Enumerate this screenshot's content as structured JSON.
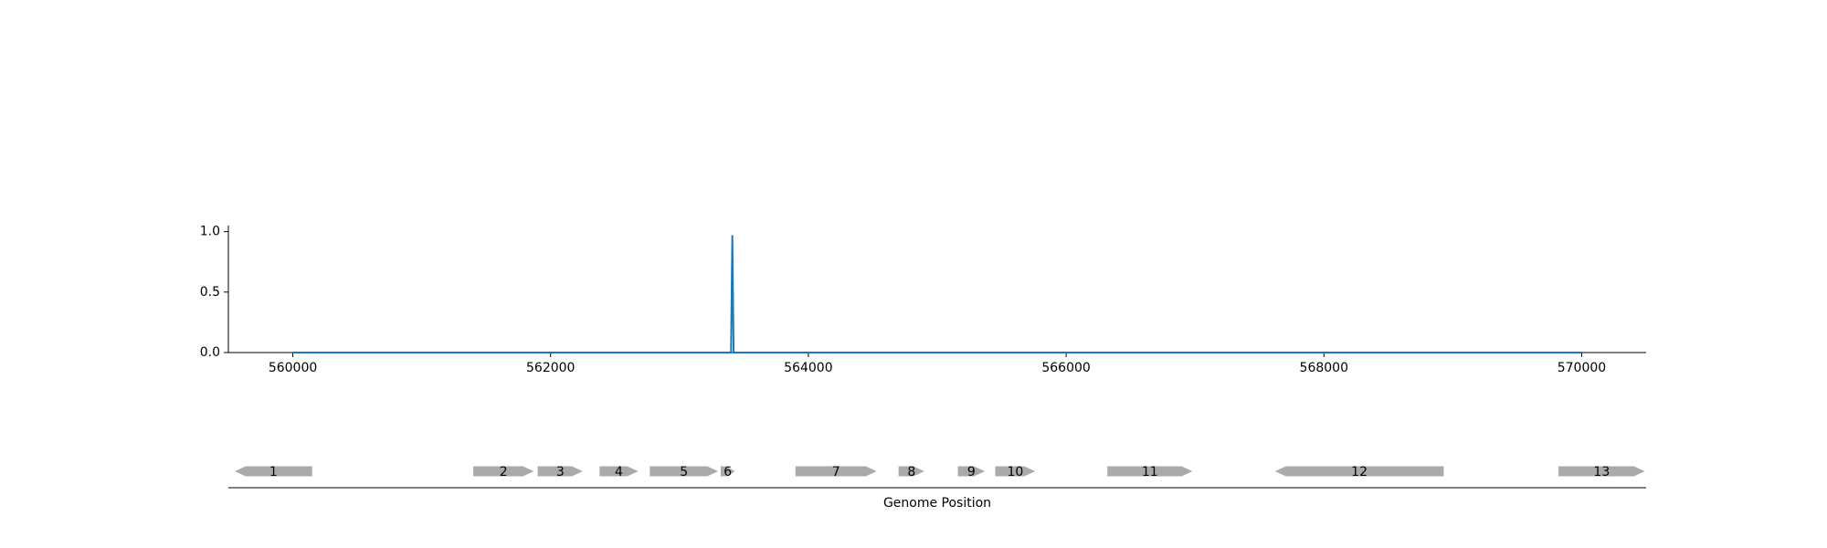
{
  "chart_data": [
    {
      "type": "line",
      "series": [
        {
          "color": "#1f77b4",
          "x": [
            560000,
            563400,
            563410,
            563420,
            570000
          ],
          "y": [
            0.0,
            0.0,
            0.97,
            0.0,
            0.0
          ]
        }
      ],
      "xlim": [
        559500,
        570500
      ],
      "ylim": [
        0.0,
        1.05
      ],
      "xticks": [
        560000,
        562000,
        564000,
        566000,
        568000,
        570000
      ],
      "xtick_labels": [
        "560000",
        "562000",
        "564000",
        "566000",
        "568000",
        "570000"
      ],
      "yticks": [
        0.0,
        0.5,
        1.0
      ],
      "ytick_labels": [
        "0.0",
        "0.5",
        "1.0"
      ],
      "grid": false
    },
    {
      "type": "gene-track",
      "xlabel": "Genome Position",
      "xlim": [
        559500,
        570500
      ],
      "gene_color": "#aaaaaa",
      "genes": [
        {
          "label": "1",
          "start": 559550,
          "end": 560150,
          "strand": "-"
        },
        {
          "label": "2",
          "start": 561400,
          "end": 561870,
          "strand": "+"
        },
        {
          "label": "3",
          "start": 561900,
          "end": 562250,
          "strand": "+"
        },
        {
          "label": "4",
          "start": 562380,
          "end": 562680,
          "strand": "+"
        },
        {
          "label": "5",
          "start": 562770,
          "end": 563300,
          "strand": "+"
        },
        {
          "label": "6",
          "start": 563320,
          "end": 563430,
          "strand": "+"
        },
        {
          "label": "7",
          "start": 563900,
          "end": 564530,
          "strand": "+"
        },
        {
          "label": "8",
          "start": 564700,
          "end": 564900,
          "strand": "+"
        },
        {
          "label": "9",
          "start": 565160,
          "end": 565370,
          "strand": "+"
        },
        {
          "label": "10",
          "start": 565450,
          "end": 565760,
          "strand": "+"
        },
        {
          "label": "11",
          "start": 566320,
          "end": 566980,
          "strand": "+"
        },
        {
          "label": "12",
          "start": 567620,
          "end": 568930,
          "strand": "-"
        },
        {
          "label": "13",
          "start": 569820,
          "end": 570490,
          "strand": "+"
        }
      ]
    }
  ]
}
